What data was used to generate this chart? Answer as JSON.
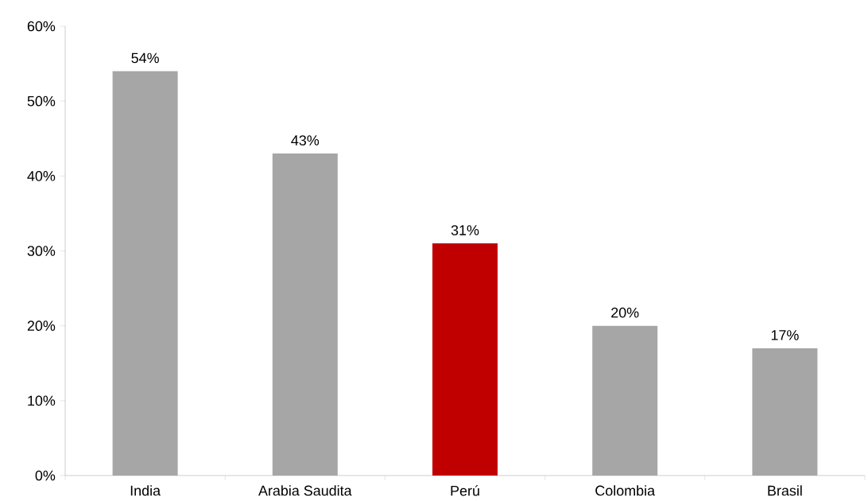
{
  "chart_data": {
    "type": "bar",
    "categories": [
      "India",
      "Arabia Saudita",
      "Perú",
      "Colombia",
      "Brasil"
    ],
    "values": [
      54,
      43,
      31,
      20,
      17
    ],
    "colors": [
      "#a6a6a6",
      "#a6a6a6",
      "#c00000",
      "#a6a6a6",
      "#a6a6a6"
    ],
    "value_labels": [
      "54%",
      "43%",
      "31%",
      "20%",
      "17%"
    ],
    "ylim": [
      0,
      60
    ],
    "yticks": [
      {
        "value": 0,
        "label": "0%"
      },
      {
        "value": 10,
        "label": "10%"
      },
      {
        "value": 20,
        "label": "20%"
      },
      {
        "value": 30,
        "label": "30%"
      },
      {
        "value": 40,
        "label": "40%"
      },
      {
        "value": 50,
        "label": "50%"
      },
      {
        "value": 60,
        "label": "60%"
      }
    ]
  }
}
